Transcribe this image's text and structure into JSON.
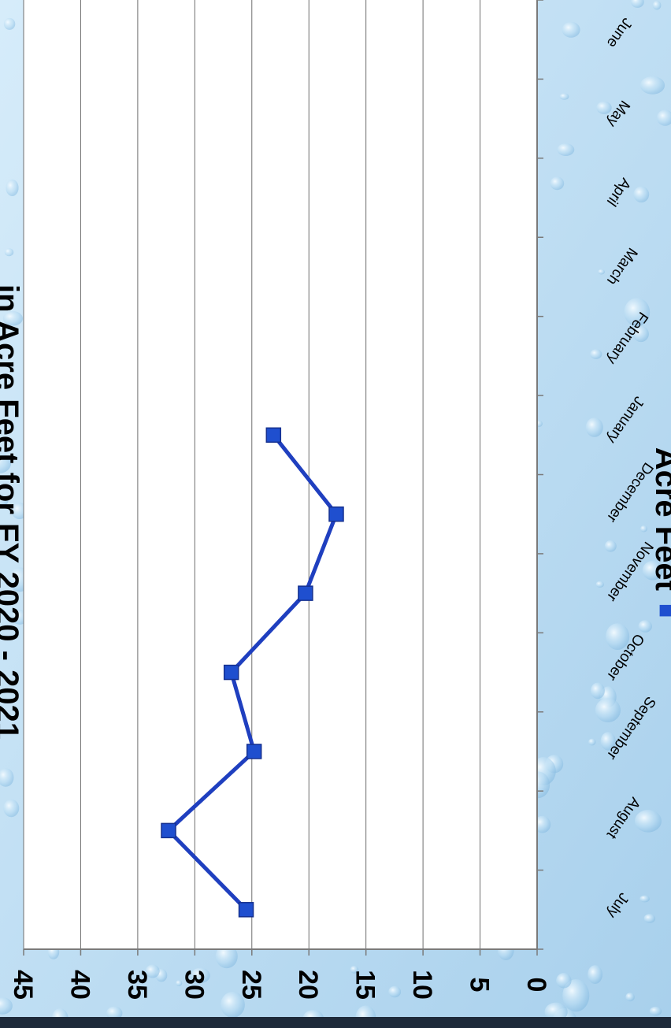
{
  "colors": {
    "background": "#a8d0ec",
    "background_light": "#d6ecfa",
    "plot_area": "#ffffff",
    "gridline": "#6f6f6f",
    "axis": "#7a7a7a",
    "series_line": "#1f3fbf",
    "marker": "#1f4fcf",
    "label_text": "#000000",
    "bottom_bar": "#1e2a3a"
  },
  "chart_data": {
    "type": "line",
    "orientation": "rotated 90° clockwise (page turned sideways)",
    "title": "in Acre Feet for FY 2020 - 2021",
    "categories": [
      "July",
      "August",
      "September",
      "October",
      "November",
      "December",
      "January",
      "February",
      "March",
      "April",
      "May",
      "June"
    ],
    "series": [
      {
        "name": "Acre Feet",
        "values": [
          25.5,
          32.3,
          24.8,
          26.8,
          20.3,
          17.6,
          23.1,
          null,
          null,
          null,
          null,
          null
        ]
      }
    ],
    "ylim": [
      0,
      45
    ],
    "yticks": [
      "0",
      "5",
      "10",
      "15",
      "20",
      "25",
      "30",
      "35",
      "40",
      "45"
    ],
    "grid": true,
    "legend_position": "bottom-right",
    "legend_marker": "■"
  }
}
